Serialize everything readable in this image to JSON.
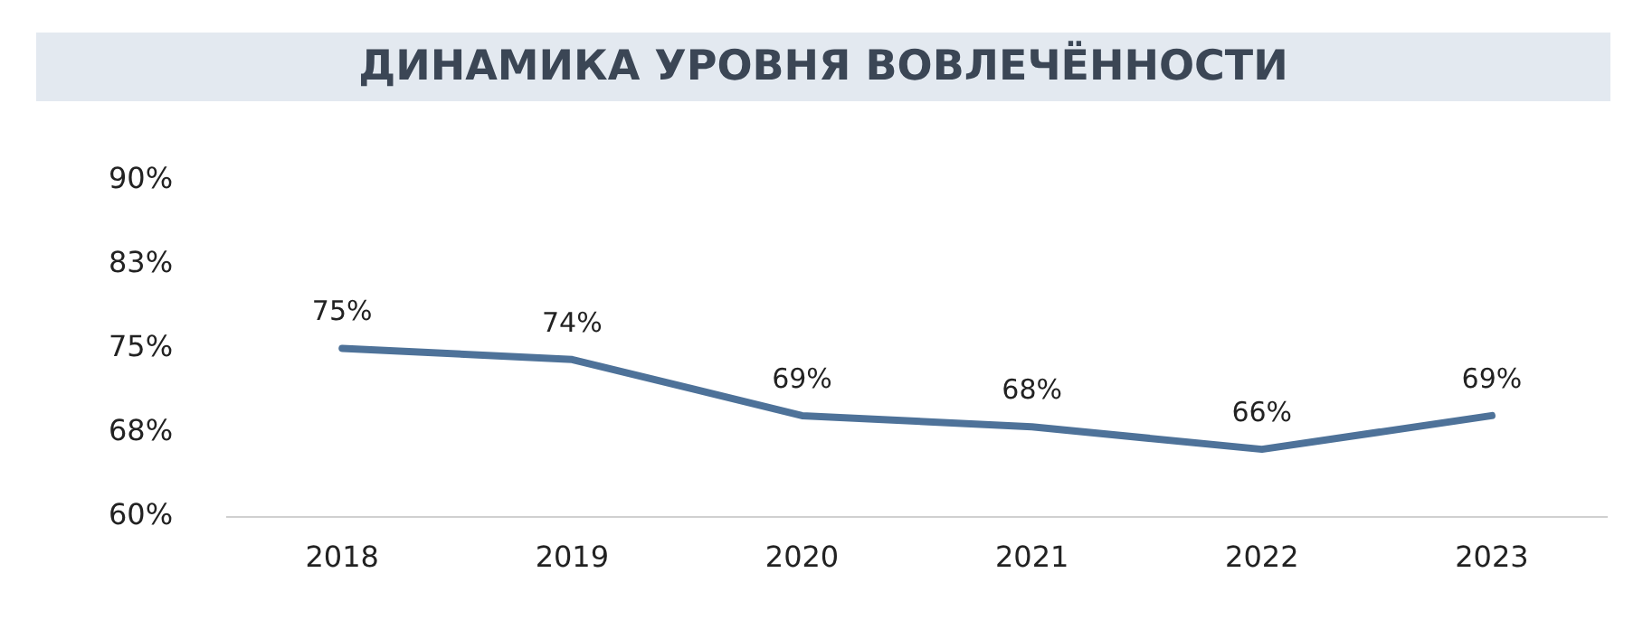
{
  "chart_data": {
    "type": "line",
    "title": "ДИНАМИКА УРОВНЯ ВОВЛЕЧЁННОСТИ",
    "categories": [
      "2018",
      "2019",
      "2020",
      "2021",
      "2022",
      "2023"
    ],
    "series": [
      {
        "color": "#4e7299",
        "values": [
          75,
          74,
          69,
          68,
          66,
          69
        ]
      }
    ],
    "ylim": [
      60,
      90
    ],
    "yticks": [
      {
        "value": 60,
        "label": "60%"
      },
      {
        "value": 67.5,
        "label": "68%"
      },
      {
        "value": 75,
        "label": "75%"
      },
      {
        "value": 82.5,
        "label": "83%"
      },
      {
        "value": 90,
        "label": "90%"
      }
    ],
    "value_labels": [
      "75%",
      "74%",
      "69%",
      "68%",
      "66%",
      "69%"
    ],
    "grid": false,
    "legend": false,
    "marker": "none",
    "line_style": "solid"
  }
}
